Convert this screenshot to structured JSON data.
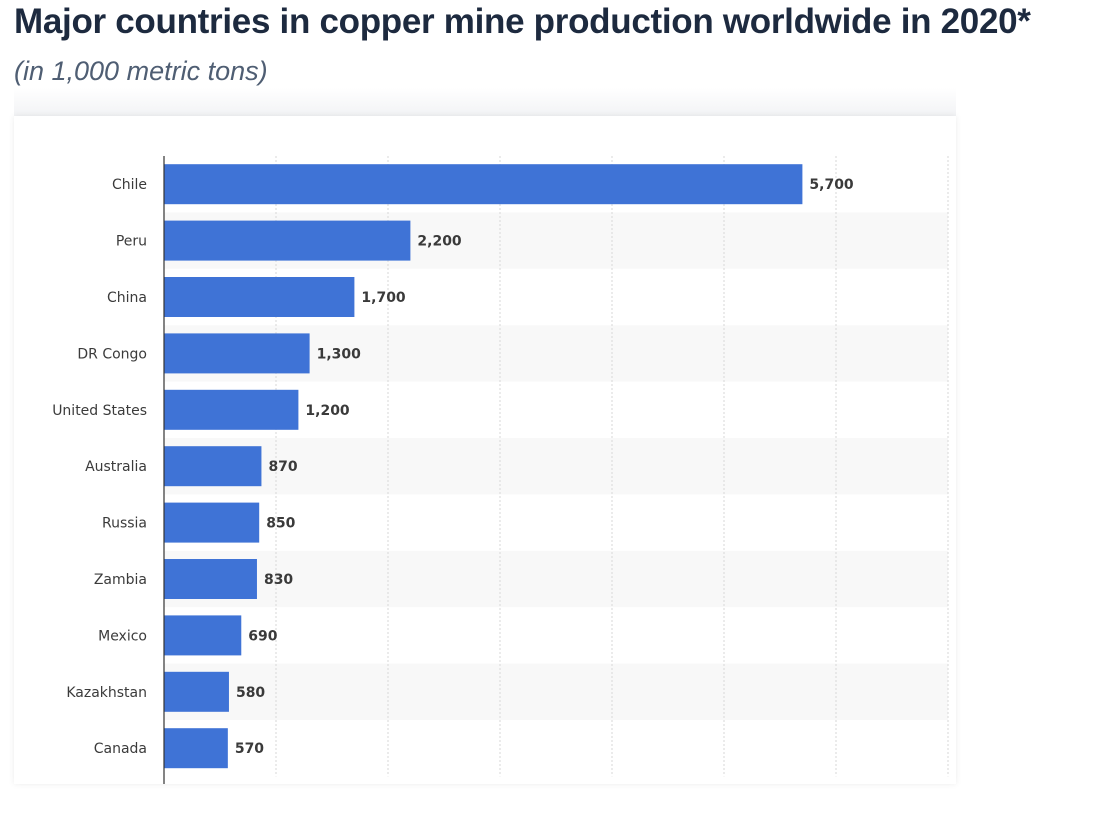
{
  "title": "Major countries in copper mine production worldwide in 2020*",
  "subtitle": "(in 1,000 metric tons)",
  "chart_data": {
    "type": "bar",
    "orientation": "horizontal",
    "categories": [
      "Chile",
      "Peru",
      "China",
      "DR Congo",
      "United States",
      "Australia",
      "Russia",
      "Zambia",
      "Mexico",
      "Kazakhstan",
      "Canada"
    ],
    "values": [
      5700,
      2200,
      1700,
      1300,
      1200,
      870,
      850,
      830,
      690,
      580,
      570
    ],
    "value_labels": [
      "5,700",
      "2,200",
      "1,700",
      "1,300",
      "1,200",
      "870",
      "850",
      "830",
      "690",
      "580",
      "570"
    ],
    "xlim": [
      0,
      7000
    ],
    "grid": true,
    "bar_color": "#3f73d6"
  }
}
